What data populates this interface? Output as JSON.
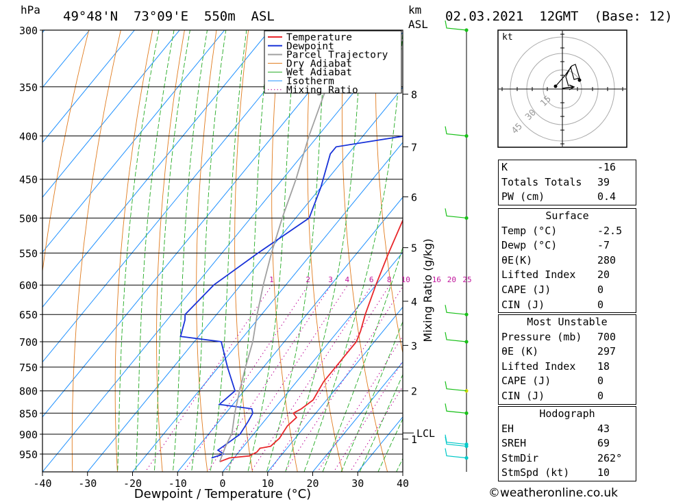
{
  "header": {
    "location": "49°48'N  73°09'E  550m  ASL",
    "datetime": "02.03.2021  12GMT  (Base: 12)",
    "hpa_label": "hPa",
    "km_label": "km",
    "asl_label": "ASL"
  },
  "chart_data": {
    "type": "line",
    "xlabel": "Dewpoint / Temperature (°C)",
    "ylabel_left": "hPa",
    "ylabel_right": "Mixing Ratio (g/kg)",
    "x_ticks": [
      "-40",
      "-30",
      "-20",
      "-10",
      "0",
      "10",
      "20",
      "30",
      "40"
    ],
    "x_range": [
      -40,
      40
    ],
    "pressure_levels": [
      "300",
      "350",
      "400",
      "450",
      "500",
      "550",
      "600",
      "650",
      "700",
      "750",
      "800",
      "850",
      "900",
      "950"
    ],
    "km_ticks": [
      {
        "km": "8",
        "p": 357
      },
      {
        "km": "7",
        "p": 412
      },
      {
        "km": "6",
        "p": 472
      },
      {
        "km": "5",
        "p": 542
      },
      {
        "km": "4",
        "p": 627
      },
      {
        "km": "3",
        "p": 707
      },
      {
        "km": "2",
        "p": 800
      },
      {
        "km": "1",
        "p": 912
      }
    ],
    "lcl": {
      "label": "LCL",
      "p": 897
    },
    "mixing_ratio_labels": [
      "1",
      "2",
      "3",
      "4",
      "6",
      "8",
      "10",
      "16",
      "20",
      "25"
    ],
    "legend": [
      "Temperature",
      "Dewpoint",
      "Parcel Trajectory",
      "Dry Adiabat",
      "Wet Adiabat",
      "Isotherm",
      "Mixing Ratio"
    ],
    "series": [
      {
        "name": "Temperature",
        "color": "#e8262a",
        "points": [
          [
            -2.5,
            970
          ],
          [
            -1,
            960
          ],
          [
            3,
            955
          ],
          [
            4,
            945
          ],
          [
            4,
            935
          ],
          [
            6,
            930
          ],
          [
            6.5,
            910
          ],
          [
            6,
            880
          ],
          [
            6.5,
            860
          ],
          [
            5,
            850
          ],
          [
            6,
            840
          ],
          [
            7,
            820
          ],
          [
            6.5,
            800
          ],
          [
            6,
            780
          ],
          [
            6,
            750
          ],
          [
            6,
            720
          ],
          [
            6,
            700
          ],
          [
            5,
            680
          ],
          [
            3,
            650
          ],
          [
            0,
            600
          ],
          [
            -3,
            550
          ],
          [
            -6,
            500
          ],
          [
            -9,
            450
          ],
          [
            -12,
            400
          ],
          [
            -13,
            390
          ],
          [
            -16,
            350
          ],
          [
            -20,
            300
          ]
        ]
      },
      {
        "name": "Dewpoint",
        "color": "#1832d8",
        "points": [
          [
            -5,
            960
          ],
          [
            -3,
            950
          ],
          [
            -5,
            940
          ],
          [
            -4,
            920
          ],
          [
            -3,
            900
          ],
          [
            -3.5,
            870
          ],
          [
            -4,
            850
          ],
          [
            -5,
            840
          ],
          [
            -13,
            830
          ],
          [
            -12,
            800
          ],
          [
            -18,
            750
          ],
          [
            -24,
            700
          ],
          [
            -34,
            690
          ],
          [
            -36,
            660
          ],
          [
            -37,
            650
          ],
          [
            -36,
            600
          ],
          [
            -32,
            550
          ],
          [
            -27,
            500
          ],
          [
            -30,
            460
          ],
          [
            -34,
            420
          ],
          [
            -34,
            412
          ],
          [
            -9.5,
            390
          ],
          [
            -11,
            360
          ],
          [
            -13,
            330
          ],
          [
            -14,
            310
          ],
          [
            -16,
            300
          ]
        ]
      },
      {
        "name": "Parcel Trajectory",
        "color": "#a0a0a0",
        "points": [
          [
            -2.5,
            970
          ],
          [
            -4,
            930
          ],
          [
            -5,
            897
          ],
          [
            -8,
            850
          ],
          [
            -11,
            800
          ],
          [
            -14,
            750
          ],
          [
            -17,
            700
          ],
          [
            -21,
            650
          ],
          [
            -25,
            600
          ],
          [
            -29,
            550
          ],
          [
            -33,
            500
          ],
          [
            -37,
            450
          ],
          [
            -42,
            400
          ],
          [
            -47,
            350
          ],
          [
            -52,
            300
          ]
        ]
      }
    ]
  },
  "hodograph": {
    "unit_label": "kt",
    "rings": [
      "15",
      "30",
      "45"
    ]
  },
  "indices": {
    "k_label": "K",
    "k_value": "-16",
    "tt_label": "Totals Totals",
    "tt_value": "39",
    "pw_label": "PW (cm)",
    "pw_value": "0.4"
  },
  "surface": {
    "title": "Surface",
    "rows": [
      {
        "label": "Temp (°C)",
        "value": "-2.5"
      },
      {
        "label": "Dewp (°C)",
        "value": "-7"
      },
      {
        "label": "θE(K)",
        "value": "280"
      },
      {
        "label": "Lifted Index",
        "value": "20"
      },
      {
        "label": "CAPE (J)",
        "value": "0"
      },
      {
        "label": "CIN (J)",
        "value": "0"
      }
    ]
  },
  "most_unstable": {
    "title": "Most Unstable",
    "rows": [
      {
        "label": "Pressure (mb)",
        "value": "700"
      },
      {
        "label": "θE (K)",
        "value": "297"
      },
      {
        "label": "Lifted Index",
        "value": "18"
      },
      {
        "label": "CAPE (J)",
        "value": "0"
      },
      {
        "label": "CIN (J)",
        "value": "0"
      }
    ]
  },
  "hodo_stats": {
    "title": "Hodograph",
    "rows": [
      {
        "label": "EH",
        "value": "43"
      },
      {
        "label": "SREH",
        "value": "69"
      },
      {
        "label": "StmDir",
        "value": "262°"
      },
      {
        "label": "StmSpd (kt)",
        "value": "10"
      }
    ]
  },
  "copyright": "©weatheronline.co.uk",
  "colors": {
    "temperature": "#e8262a",
    "dewpoint": "#1832d8",
    "parcel": "#a0a0a0",
    "dry_adiabat": "#e07a1c",
    "wet_adiabat": "#22aa22",
    "isotherm": "#1e90ff",
    "mixing_ratio": "#c0149c"
  }
}
